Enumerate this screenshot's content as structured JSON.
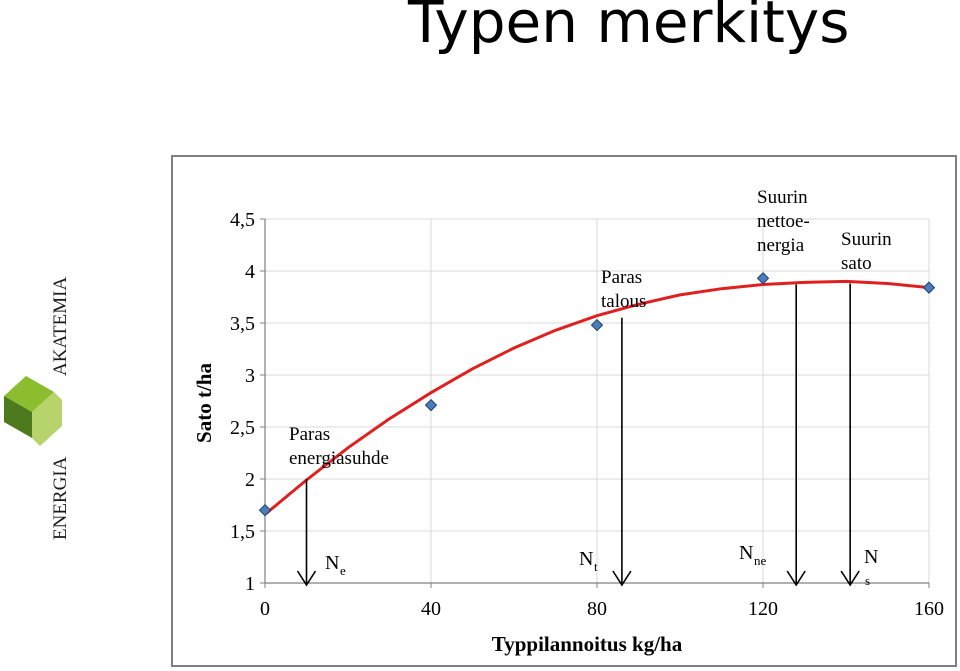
{
  "slide": {
    "title": "Typen merkitys"
  },
  "logo": {
    "text_top": "AKATEMIA",
    "text_bottom": "ENERGIA",
    "colors": [
      "#8bbd2e",
      "#4e7a1e",
      "#b7d36b"
    ]
  },
  "chart_data": {
    "type": "scatter",
    "xlabel": "Typpilannoitus  kg/ha",
    "ylabel": "Sato t/ha",
    "xlim": [
      0,
      160
    ],
    "ylim": [
      1,
      4.5
    ],
    "xticks": [
      "0",
      "40",
      "80",
      "120",
      "160"
    ],
    "yticks": [
      "1",
      "1,5",
      "2",
      "2,5",
      "3",
      "3,5",
      "4",
      "4,5"
    ],
    "grid": true,
    "points": [
      {
        "x": 0,
        "y": 1.7
      },
      {
        "x": 40,
        "y": 2.71
      },
      {
        "x": 80,
        "y": 3.48
      },
      {
        "x": 120,
        "y": 3.93
      },
      {
        "x": 160,
        "y": 3.84
      }
    ],
    "trendline": {
      "type": "polynomial",
      "color": "#e02020",
      "points": [
        {
          "x": 0,
          "y": 1.66
        },
        {
          "x": 10,
          "y": 1.99
        },
        {
          "x": 20,
          "y": 2.3
        },
        {
          "x": 30,
          "y": 2.58
        },
        {
          "x": 40,
          "y": 2.83
        },
        {
          "x": 50,
          "y": 3.06
        },
        {
          "x": 60,
          "y": 3.26
        },
        {
          "x": 70,
          "y": 3.43
        },
        {
          "x": 80,
          "y": 3.57
        },
        {
          "x": 90,
          "y": 3.68
        },
        {
          "x": 100,
          "y": 3.77
        },
        {
          "x": 110,
          "y": 3.83
        },
        {
          "x": 120,
          "y": 3.87
        },
        {
          "x": 130,
          "y": 3.89
        },
        {
          "x": 140,
          "y": 3.9
        },
        {
          "x": 150,
          "y": 3.88
        },
        {
          "x": 160,
          "y": 3.84
        }
      ]
    },
    "marker_color": "#4a7ebb",
    "annotations": [
      {
        "text": [
          "Paras",
          "energiasuhde"
        ],
        "arrow_x": 10,
        "arrow_y_top": 2.0,
        "label": "N",
        "sub": "e"
      },
      {
        "text": [
          "Paras",
          "talous"
        ],
        "arrow_x": 86,
        "arrow_y_top": 3.55,
        "label": "N",
        "sub": "t"
      },
      {
        "text": [
          "Suurin",
          "nettoe-",
          "nergia"
        ],
        "arrow_x": 128,
        "arrow_y_top": 3.87,
        "label": "N",
        "sub": "ne"
      },
      {
        "text": [
          "Suurin",
          "sato"
        ],
        "arrow_x": 141,
        "arrow_y_top": 3.88,
        "label": "N",
        "sub": "s"
      }
    ]
  }
}
